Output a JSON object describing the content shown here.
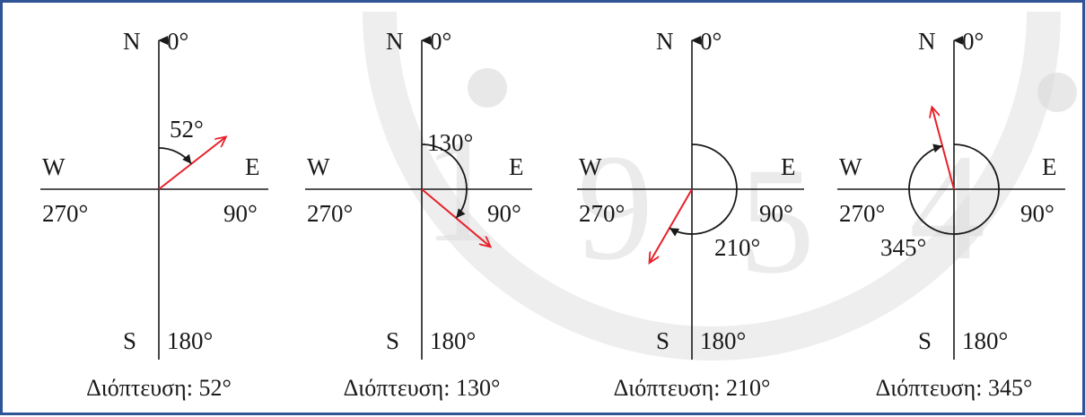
{
  "compass_panels": [
    {
      "north": "N",
      "zero": "0°",
      "west": "W",
      "east": "E",
      "south": "S",
      "deg270": "270°",
      "deg90": "90°",
      "deg180": "180°",
      "angle_label": "52°",
      "caption": "Διόπτευση: 52°",
      "bearing": 52
    },
    {
      "north": "N",
      "zero": "0°",
      "west": "W",
      "east": "E",
      "south": "S",
      "deg270": "270°",
      "deg90": "90°",
      "deg180": "180°",
      "angle_label": "130°",
      "caption": "Διόπτευση: 130°",
      "bearing": 130
    },
    {
      "north": "N",
      "zero": "0°",
      "west": "W",
      "east": "E",
      "south": "S",
      "deg270": "270°",
      "deg90": "90°",
      "deg180": "180°",
      "angle_label": "210°",
      "caption": "Διόπτευση: 210°",
      "bearing": 210
    },
    {
      "north": "N",
      "zero": "0°",
      "west": "W",
      "east": "E",
      "south": "S",
      "deg270": "270°",
      "deg90": "90°",
      "deg180": "180°",
      "angle_label": "345°",
      "caption": "Διόπτευση: 345°",
      "bearing": 345
    }
  ],
  "colors": {
    "frame": "#2f5597",
    "vector": "#e8202a",
    "ink": "#1a1a1a",
    "watermark": "#d9d9d9"
  }
}
